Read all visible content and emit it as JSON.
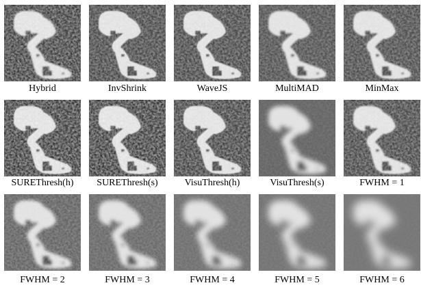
{
  "figure": {
    "rows": [
      [
        "Hybrid",
        "InvShrink",
        "WaveJS",
        "MultiMAD",
        "MinMax"
      ],
      [
        "SUREThresh(h)",
        "SUREThresh(s)",
        "VisuThresh(h)",
        "VisuThresh(s)",
        "FWHM = 1"
      ],
      [
        "FWHM = 2",
        "FWHM = 3",
        "FWHM = 4",
        "FWHM = 5",
        "FWHM = 6"
      ]
    ]
  }
}
